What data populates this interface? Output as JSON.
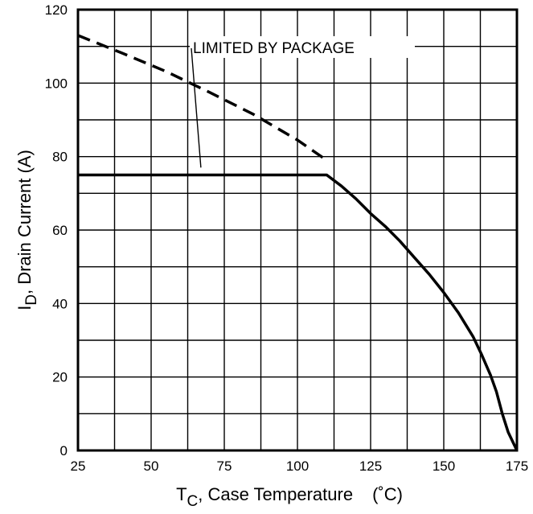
{
  "chart_data": {
    "type": "line",
    "title": "",
    "xlabel": {
      "main": "T",
      "sub": "C",
      "rest": ", Case Temperature",
      "unit": "(˚C)"
    },
    "ylabel": {
      "main": "I",
      "sub": "D",
      "rest": ", Drain Current (A)"
    },
    "xlim": [
      25,
      175
    ],
    "ylim": [
      0,
      120
    ],
    "xticks": [
      25,
      50,
      75,
      100,
      125,
      150,
      175
    ],
    "yticks": [
      0,
      20,
      40,
      60,
      80,
      100,
      120
    ],
    "grid": true,
    "minor_x_step": 12.5,
    "minor_y_step": 10,
    "series": [
      {
        "style": "dashed",
        "x": [
          25,
          40,
          55,
          70,
          85,
          100,
          110
        ],
        "y": [
          113,
          108.2,
          103.2,
          97.5,
          91.5,
          84.5,
          79
        ]
      },
      {
        "style": "solid",
        "x": [
          25,
          105,
          108,
          110,
          115,
          120,
          125,
          130,
          135,
          140,
          145,
          150,
          155,
          160,
          163,
          166,
          168,
          170,
          172,
          175
        ],
        "y": [
          75,
          75,
          75,
          75,
          72,
          68.5,
          64.5,
          61,
          57,
          52.5,
          48,
          43,
          37.5,
          31,
          26,
          20.5,
          16,
          10,
          5,
          0
        ]
      }
    ],
    "annotations": [
      {
        "text": "LIMITED BY PACKAGE",
        "point_x": 67,
        "point_y": 77
      }
    ]
  }
}
